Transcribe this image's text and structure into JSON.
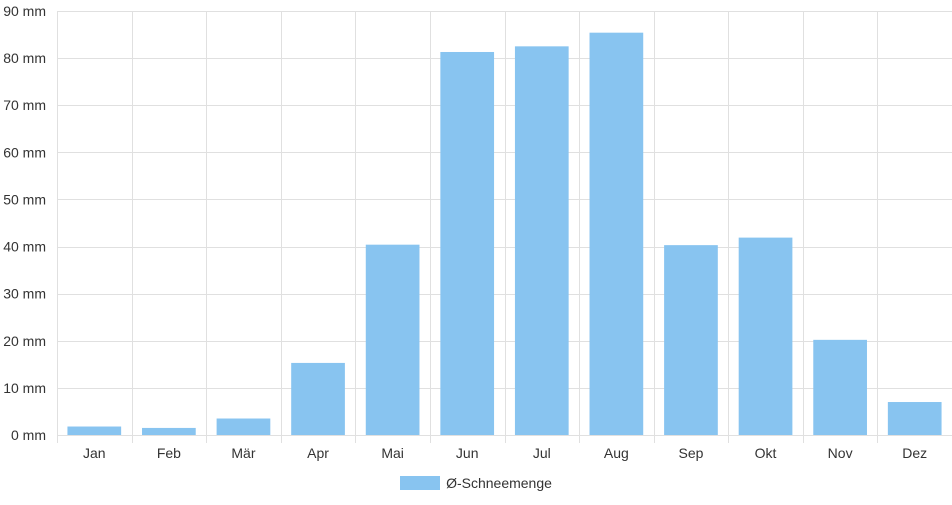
{
  "chart_data": {
    "type": "bar",
    "categories": [
      "Jan",
      "Feb",
      "Mär",
      "Apr",
      "Mai",
      "Jun",
      "Jul",
      "Aug",
      "Sep",
      "Okt",
      "Nov",
      "Dez"
    ],
    "series": [
      {
        "name": "Ø-Schneemenge",
        "values": [
          1.8,
          1.5,
          3.5,
          15.3,
          40.4,
          81.3,
          82.5,
          85.4,
          40.3,
          41.9,
          20.2,
          7.0
        ]
      }
    ],
    "ylim": [
      0,
      90
    ],
    "yticks": [
      0,
      10,
      20,
      30,
      40,
      50,
      60,
      70,
      80,
      90
    ],
    "y_unit": "mm",
    "grid": true,
    "legend_position": "bottom"
  },
  "colors": {
    "bar": "#88c4f0",
    "grid": "#e0e0e0",
    "axis_text": "#333333"
  }
}
